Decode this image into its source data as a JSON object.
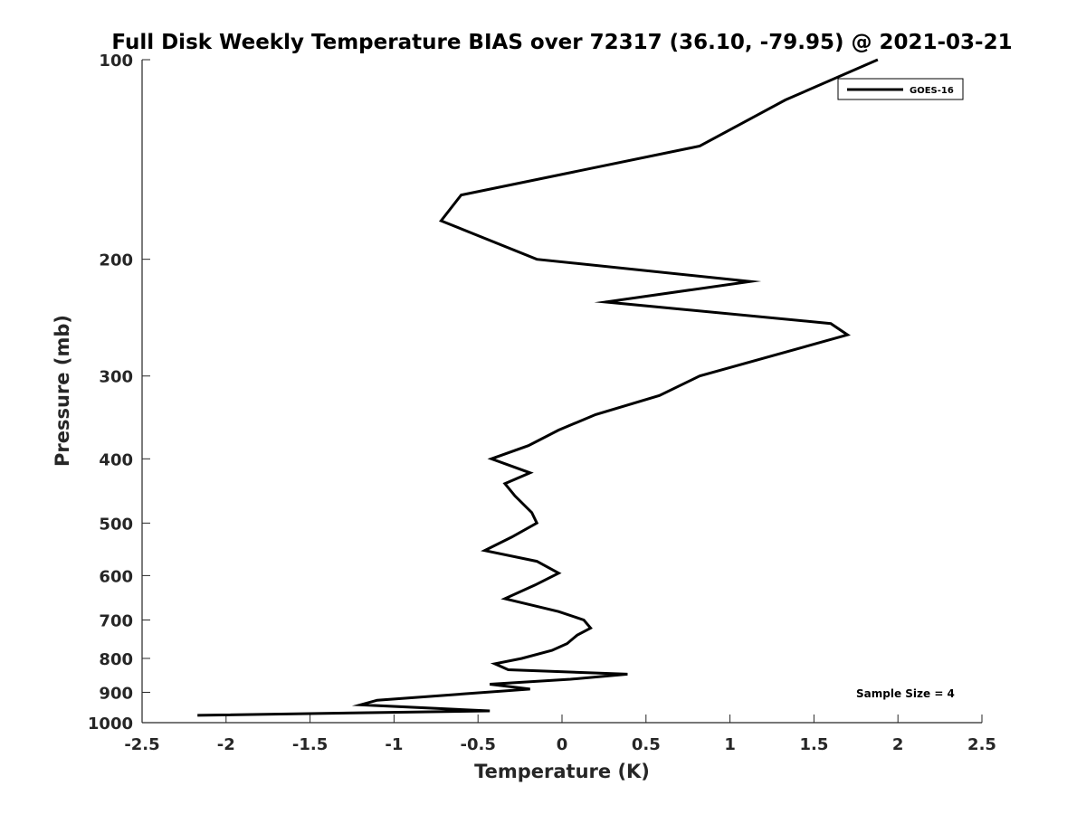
{
  "chart_data": {
    "type": "line",
    "title": "Full Disk Weekly Temperature BIAS over 72317 (36.10, -79.95) @ 2021-03-21",
    "xlabel": "Temperature (K)",
    "ylabel": "Pressure (mb)",
    "xlim": [
      -2.5,
      2.5
    ],
    "ylim": [
      100,
      1000
    ],
    "y_scale": "log",
    "y_reversed": true,
    "grid": false,
    "legend_position": "top-right",
    "x_ticks": [
      "-2.5",
      "-2",
      "-1.5",
      "-1",
      "-0.5",
      "0",
      "0.5",
      "1",
      "1.5",
      "2",
      "2.5"
    ],
    "y_ticks": [
      "100",
      "200",
      "300",
      "400",
      "500",
      "600",
      "700",
      "800",
      "900",
      "1000"
    ],
    "annotation": "Sample Size = 4",
    "line_color": "#000000",
    "series": [
      {
        "name": "GOES-16",
        "points": [
          [
            1.88,
            100
          ],
          [
            1.33,
            115
          ],
          [
            0.82,
            135
          ],
          [
            -0.6,
            160
          ],
          [
            -0.72,
            175
          ],
          [
            -0.15,
            200
          ],
          [
            1.12,
            216
          ],
          [
            0.26,
            232
          ],
          [
            1.6,
            250
          ],
          [
            1.7,
            260
          ],
          [
            0.82,
            300
          ],
          [
            0.58,
            321
          ],
          [
            0.2,
            343
          ],
          [
            -0.02,
            362
          ],
          [
            -0.2,
            382
          ],
          [
            -0.42,
            400
          ],
          [
            -0.19,
            420
          ],
          [
            -0.34,
            436
          ],
          [
            -0.28,
            455
          ],
          [
            -0.18,
            482
          ],
          [
            -0.15,
            500
          ],
          [
            -0.3,
            525
          ],
          [
            -0.46,
            550
          ],
          [
            -0.15,
            571
          ],
          [
            -0.02,
            595
          ],
          [
            -0.16,
            620
          ],
          [
            -0.34,
            650
          ],
          [
            -0.02,
            680
          ],
          [
            0.13,
            700
          ],
          [
            0.17,
            720
          ],
          [
            0.09,
            738
          ],
          [
            0.03,
            760
          ],
          [
            -0.06,
            778
          ],
          [
            -0.24,
            800
          ],
          [
            -0.4,
            815
          ],
          [
            -0.32,
            832
          ],
          [
            0.39,
            845
          ],
          [
            0.05,
            860
          ],
          [
            -0.43,
            875
          ],
          [
            -0.19,
            890
          ],
          [
            -1.1,
            925
          ],
          [
            -1.2,
            940
          ],
          [
            -0.43,
            960
          ],
          [
            -2.17,
            975
          ]
        ]
      }
    ]
  }
}
